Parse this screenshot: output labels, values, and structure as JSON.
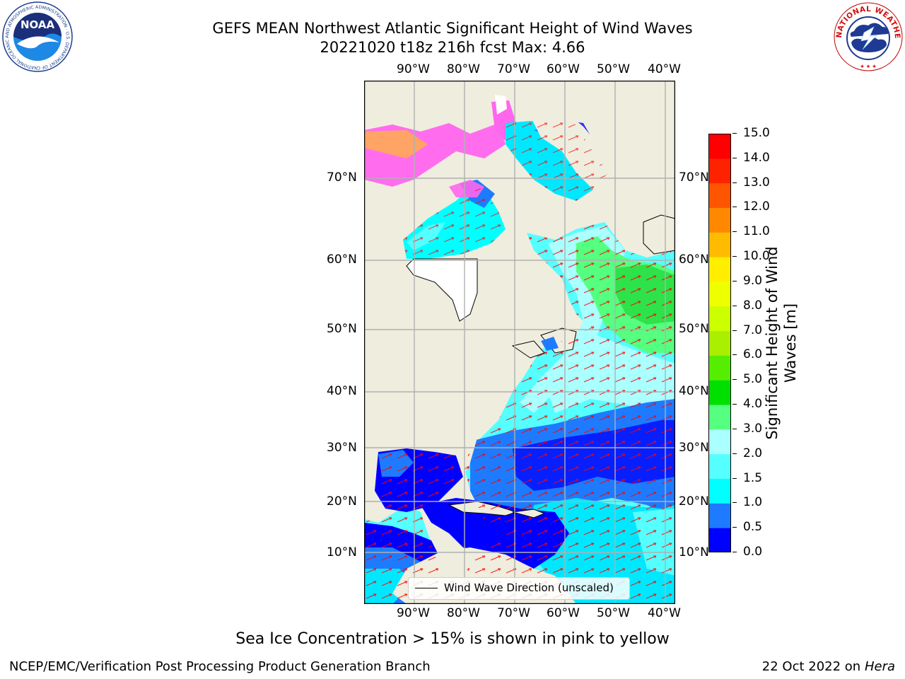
{
  "header": {
    "title_line1": "GEFS MEAN Northwest Atlantic Significant Height of Wind Waves",
    "title_line2": "20221020 t18z 216h fcst   Max: 4.66"
  },
  "logos": {
    "noaa_text": "NOAA",
    "noaa_ring_text": "NATIONAL OCEANIC AND ATMOSPHERIC ADMINISTRATION · U.S. DEPARTMENT OF COMMERCE",
    "nws_ring_text": "NATIONAL WEATHER SERVICE"
  },
  "map": {
    "lon_labels": [
      "90°W",
      "80°W",
      "70°W",
      "60°W",
      "50°W",
      "40°W"
    ],
    "lat_labels": [
      "70°N",
      "60°N",
      "50°N",
      "40°N",
      "30°N",
      "20°N",
      "10°N"
    ],
    "legend_label": "Wind Wave Direction (unscaled)",
    "colors": {
      "land": "#efedde",
      "ice_free_white": "#ffffff",
      "grid": "#b0b0b0",
      "arrows": "#ff0000"
    }
  },
  "colorbar": {
    "label": "Significant Height of Wind Waves [m]",
    "levels": [
      "0.0",
      "0.5",
      "1.0",
      "1.5",
      "2.0",
      "3.0",
      "4.0",
      "5.0",
      "6.0",
      "7.0",
      "8.0",
      "9.0",
      "10.0",
      "11.0",
      "12.0",
      "13.0",
      "14.0",
      "15.0"
    ],
    "colors": [
      "#0000ff",
      "#1e7bff",
      "#00ffff",
      "#55ffff",
      "#aaffff",
      "#55ff7f",
      "#00e000",
      "#55ee00",
      "#aaee00",
      "#ccff00",
      "#eeff00",
      "#ffee00",
      "#ffbb00",
      "#ff8800",
      "#ff5500",
      "#ff2200",
      "#ff0000"
    ]
  },
  "caption": "Sea Ice Concentration > 15% is shown in pink to yellow",
  "footer": {
    "left": "NCEP/EMC/Verification Post Processing Product Generation Branch",
    "date": "22 Oct 2022 on ",
    "machine": "Hera"
  }
}
